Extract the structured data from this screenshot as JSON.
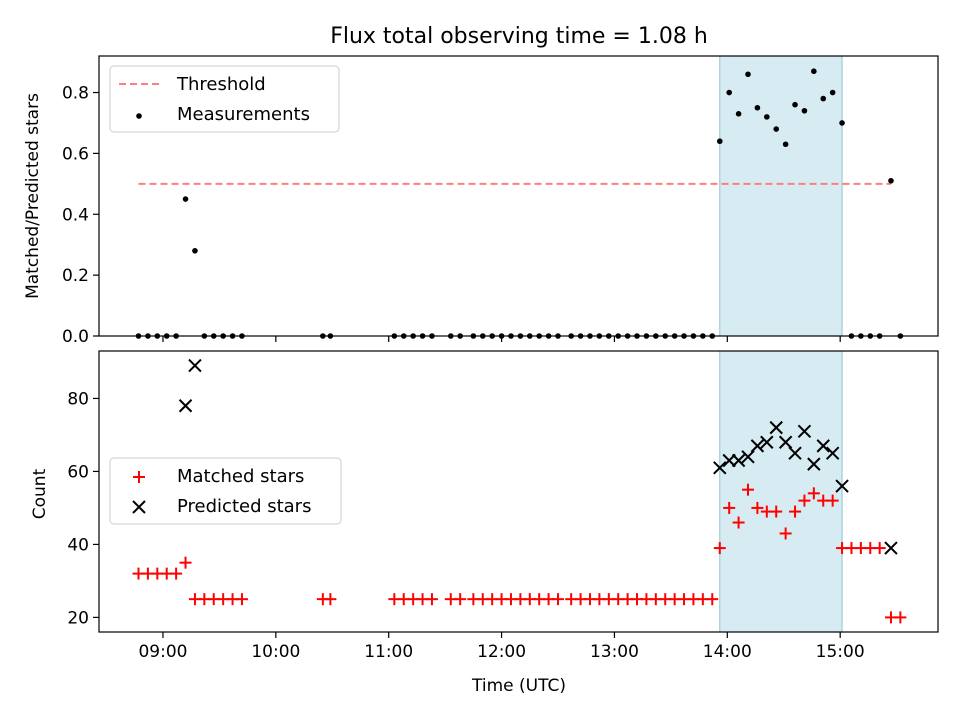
{
  "figure": {
    "title": "Flux total observing time = 1.08 h"
  },
  "chart_data": [
    {
      "type": "scatter",
      "ylabel": "Matched/Predicted stars",
      "ylim": [
        0,
        0.92
      ],
      "xlim": [
        "08:26",
        "15:52"
      ],
      "yticks": [
        0.0,
        0.2,
        0.4,
        0.6,
        0.8
      ],
      "ytick_labels": [
        "0.0",
        "0.2",
        "0.4",
        "0.6",
        "0.8"
      ],
      "shaded_region": {
        "from": "13:56",
        "to": "15:01",
        "color": "#add8e6"
      },
      "threshold": {
        "name": "Threshold",
        "value": 0.5,
        "from": "08:47",
        "to": "15:27",
        "color": "#ff7f7f"
      },
      "series": [
        {
          "name": "Measurements",
          "color": "#000000",
          "points": [
            [
              "08:47",
              0
            ],
            [
              "08:52",
              0
            ],
            [
              "08:57",
              0
            ],
            [
              "09:02",
              0
            ],
            [
              "09:07",
              0
            ],
            [
              "09:12",
              0.45
            ],
            [
              "09:17",
              0.28
            ],
            [
              "09:22",
              0
            ],
            [
              "09:27",
              0
            ],
            [
              "09:32",
              0
            ],
            [
              "09:37",
              0
            ],
            [
              "09:42",
              0
            ],
            [
              "10:25",
              0
            ],
            [
              "10:29",
              0
            ],
            [
              "11:03",
              0
            ],
            [
              "11:08",
              0
            ],
            [
              "11:13",
              0
            ],
            [
              "11:18",
              0
            ],
            [
              "11:23",
              0
            ],
            [
              "11:33",
              0
            ],
            [
              "11:38",
              0
            ],
            [
              "11:45",
              0
            ],
            [
              "11:50",
              0
            ],
            [
              "11:55",
              0
            ],
            [
              "12:00",
              0
            ],
            [
              "12:05",
              0
            ],
            [
              "12:10",
              0
            ],
            [
              "12:15",
              0
            ],
            [
              "12:20",
              0
            ],
            [
              "12:25",
              0
            ],
            [
              "12:30",
              0
            ],
            [
              "12:37",
              0
            ],
            [
              "12:42",
              0
            ],
            [
              "12:47",
              0
            ],
            [
              "12:52",
              0
            ],
            [
              "12:57",
              0
            ],
            [
              "13:02",
              0
            ],
            [
              "13:07",
              0
            ],
            [
              "13:12",
              0
            ],
            [
              "13:17",
              0
            ],
            [
              "13:22",
              0
            ],
            [
              "13:27",
              0
            ],
            [
              "13:32",
              0
            ],
            [
              "13:37",
              0
            ],
            [
              "13:42",
              0
            ],
            [
              "13:47",
              0
            ],
            [
              "13:52",
              0
            ],
            [
              "13:56",
              0.64
            ],
            [
              "14:01",
              0.8
            ],
            [
              "14:06",
              0.73
            ],
            [
              "14:11",
              0.86
            ],
            [
              "14:16",
              0.75
            ],
            [
              "14:21",
              0.72
            ],
            [
              "14:26",
              0.68
            ],
            [
              "14:31",
              0.63
            ],
            [
              "14:36",
              0.76
            ],
            [
              "14:41",
              0.74
            ],
            [
              "14:46",
              0.87
            ],
            [
              "14:51",
              0.78
            ],
            [
              "14:56",
              0.8
            ],
            [
              "15:01",
              0.7
            ],
            [
              "15:06",
              0
            ],
            [
              "15:11",
              0
            ],
            [
              "15:16",
              0
            ],
            [
              "15:21",
              0
            ],
            [
              "15:27",
              0.51
            ],
            [
              "15:32",
              0
            ]
          ]
        }
      ]
    },
    {
      "type": "scatter",
      "xlabel": "Time (UTC)",
      "ylabel": "Count",
      "ylim": [
        16,
        93
      ],
      "xlim": [
        "08:26",
        "15:52"
      ],
      "xticks": [
        "09:00",
        "10:00",
        "11:00",
        "12:00",
        "13:00",
        "14:00",
        "15:00"
      ],
      "yticks": [
        20,
        40,
        60,
        80
      ],
      "ytick_labels": [
        "20",
        "40",
        "60",
        "80"
      ],
      "shaded_region": {
        "from": "13:56",
        "to": "15:01",
        "color": "#add8e6"
      },
      "series": [
        {
          "name": "Matched stars",
          "color": "#ff0000",
          "marker": "plus",
          "points": [
            [
              "08:47",
              32
            ],
            [
              "08:52",
              32
            ],
            [
              "08:57",
              32
            ],
            [
              "09:02",
              32
            ],
            [
              "09:07",
              32
            ],
            [
              "09:12",
              35
            ],
            [
              "09:17",
              25
            ],
            [
              "09:22",
              25
            ],
            [
              "09:27",
              25
            ],
            [
              "09:32",
              25
            ],
            [
              "09:37",
              25
            ],
            [
              "09:42",
              25
            ],
            [
              "10:25",
              25
            ],
            [
              "10:29",
              25
            ],
            [
              "11:03",
              25
            ],
            [
              "11:08",
              25
            ],
            [
              "11:13",
              25
            ],
            [
              "11:18",
              25
            ],
            [
              "11:23",
              25
            ],
            [
              "11:33",
              25
            ],
            [
              "11:38",
              25
            ],
            [
              "11:45",
              25
            ],
            [
              "11:50",
              25
            ],
            [
              "11:55",
              25
            ],
            [
              "12:00",
              25
            ],
            [
              "12:05",
              25
            ],
            [
              "12:10",
              25
            ],
            [
              "12:15",
              25
            ],
            [
              "12:20",
              25
            ],
            [
              "12:25",
              25
            ],
            [
              "12:30",
              25
            ],
            [
              "12:37",
              25
            ],
            [
              "12:42",
              25
            ],
            [
              "12:47",
              25
            ],
            [
              "12:52",
              25
            ],
            [
              "12:57",
              25
            ],
            [
              "13:02",
              25
            ],
            [
              "13:07",
              25
            ],
            [
              "13:12",
              25
            ],
            [
              "13:17",
              25
            ],
            [
              "13:22",
              25
            ],
            [
              "13:27",
              25
            ],
            [
              "13:32",
              25
            ],
            [
              "13:37",
              25
            ],
            [
              "13:42",
              25
            ],
            [
              "13:47",
              25
            ],
            [
              "13:52",
              25
            ],
            [
              "13:56",
              39
            ],
            [
              "14:01",
              50
            ],
            [
              "14:06",
              46
            ],
            [
              "14:11",
              55
            ],
            [
              "14:16",
              50
            ],
            [
              "14:21",
              49
            ],
            [
              "14:26",
              49
            ],
            [
              "14:31",
              43
            ],
            [
              "14:36",
              49
            ],
            [
              "14:41",
              52
            ],
            [
              "14:46",
              54
            ],
            [
              "14:51",
              52
            ],
            [
              "14:56",
              52
            ],
            [
              "15:01",
              39
            ],
            [
              "15:06",
              39
            ],
            [
              "15:11",
              39
            ],
            [
              "15:16",
              39
            ],
            [
              "15:21",
              39
            ],
            [
              "15:27",
              20
            ],
            [
              "15:32",
              20
            ]
          ]
        },
        {
          "name": "Predicted stars",
          "color": "#000000",
          "marker": "x",
          "points": [
            [
              "09:12",
              78
            ],
            [
              "09:17",
              89
            ],
            [
              "13:56",
              61
            ],
            [
              "14:01",
              63
            ],
            [
              "14:06",
              63
            ],
            [
              "14:11",
              64
            ],
            [
              "14:16",
              67
            ],
            [
              "14:21",
              68
            ],
            [
              "14:26",
              72
            ],
            [
              "14:31",
              68
            ],
            [
              "14:36",
              65
            ],
            [
              "14:41",
              71
            ],
            [
              "14:46",
              62
            ],
            [
              "14:51",
              67
            ],
            [
              "14:56",
              65
            ],
            [
              "15:01",
              56
            ],
            [
              "15:27",
              39
            ]
          ]
        }
      ]
    }
  ]
}
